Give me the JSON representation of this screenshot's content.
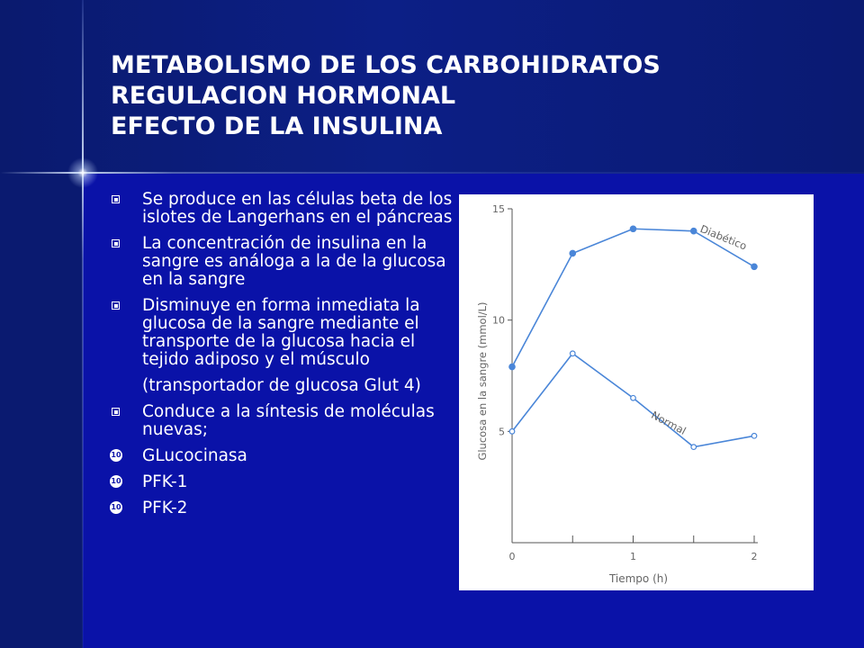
{
  "slide": {
    "title_lines": [
      "METABOLISMO DE LOS CARBOHIDRATOS",
      "REGULACION HORMONAL",
      "EFECTO DE LA INSULINA"
    ],
    "bullets": [
      "Se produce en las células beta de los islotes de Langerhans en el páncreas",
      "La concentración de insulina en la sangre es análoga a la de la glucosa en la sangre",
      "Disminuye en forma inmediata la glucosa de la sangre mediante el transporte de la glucosa hacia el tejido adiposo y el músculo"
    ],
    "paren_note": "(transportador de glucosa Glut 4)",
    "bullet_last": "Conduce a la síntesis de moléculas nuevas;",
    "enzymes": [
      "GLucocinasa",
      "PFK-1",
      "PFK-2"
    ],
    "enzyme_marker": "10"
  },
  "colors": {
    "background": "#0a12a8",
    "series": "#4a86d8"
  },
  "chart_data": {
    "type": "line",
    "xlabel": "Tiempo (h)",
    "ylabel": "Glucosa en la sangre (mmol/L)",
    "xlim": [
      0,
      2
    ],
    "ylim": [
      0,
      15
    ],
    "x_ticks": [
      0,
      0.5,
      1,
      1.5,
      2
    ],
    "x_tick_labels": [
      "0",
      "",
      "1",
      "",
      "2"
    ],
    "y_ticks": [
      5,
      10,
      15
    ],
    "y_tick_labels": [
      "5",
      "10",
      "15"
    ],
    "series": [
      {
        "name": "Diabético",
        "marker": "filled",
        "x": [
          0,
          0.5,
          1,
          1.5,
          2
        ],
        "y": [
          7.9,
          13.0,
          14.1,
          14.0,
          12.4
        ]
      },
      {
        "name": "Normal",
        "marker": "open",
        "x": [
          0,
          0.5,
          1,
          1.5,
          2
        ],
        "y": [
          5.0,
          8.5,
          6.5,
          4.3,
          4.8
        ]
      }
    ]
  }
}
